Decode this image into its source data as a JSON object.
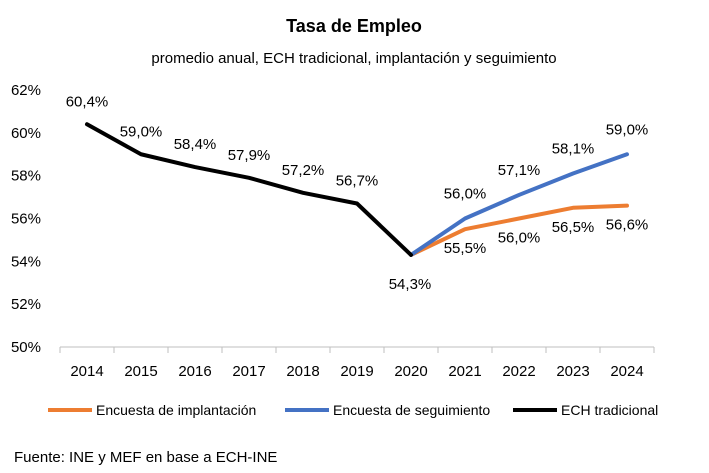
{
  "chart_data": {
    "type": "line",
    "title": "Tasa de Empleo",
    "subtitle": "promedio anual, ECH tradicional, implantación y seguimiento",
    "categories": [
      "2014",
      "2015",
      "2016",
      "2017",
      "2018",
      "2019",
      "2020",
      "2021",
      "2022",
      "2023",
      "2024"
    ],
    "ylim": [
      50,
      62
    ],
    "yticks": [
      "50%",
      "52%",
      "54%",
      "56%",
      "58%",
      "60%",
      "62%"
    ],
    "grid": false,
    "legend_position": "bottom",
    "series": [
      {
        "name": "Encuesta de implantación",
        "color": "#ed7d31",
        "values": [
          null,
          null,
          null,
          null,
          null,
          null,
          54.3,
          55.5,
          56.0,
          56.5,
          56.6
        ],
        "labels": [
          "",
          "",
          "",
          "",
          "",
          "",
          "",
          "55,5%",
          "56,0%",
          "56,5%",
          "56,6%"
        ]
      },
      {
        "name": "Encuesta de seguimiento",
        "color": "#4472c4",
        "values": [
          null,
          null,
          null,
          null,
          null,
          null,
          54.3,
          56.0,
          57.1,
          58.1,
          59.0
        ],
        "labels": [
          "",
          "",
          "",
          "",
          "",
          "",
          "",
          "56,0%",
          "57,1%",
          "58,1%",
          "59,0%"
        ]
      },
      {
        "name": "ECH tradicional",
        "color": "#000000",
        "values": [
          60.4,
          59.0,
          58.4,
          57.9,
          57.2,
          56.7,
          54.3,
          null,
          null,
          null,
          null
        ],
        "labels": [
          "60,4%",
          "59,0%",
          "58,4%",
          "57,9%",
          "57,2%",
          "56,7%",
          "54,3%",
          "",
          "",
          "",
          ""
        ]
      }
    ]
  },
  "source": "Fuente:  INE y MEF en base a ECH-INE"
}
